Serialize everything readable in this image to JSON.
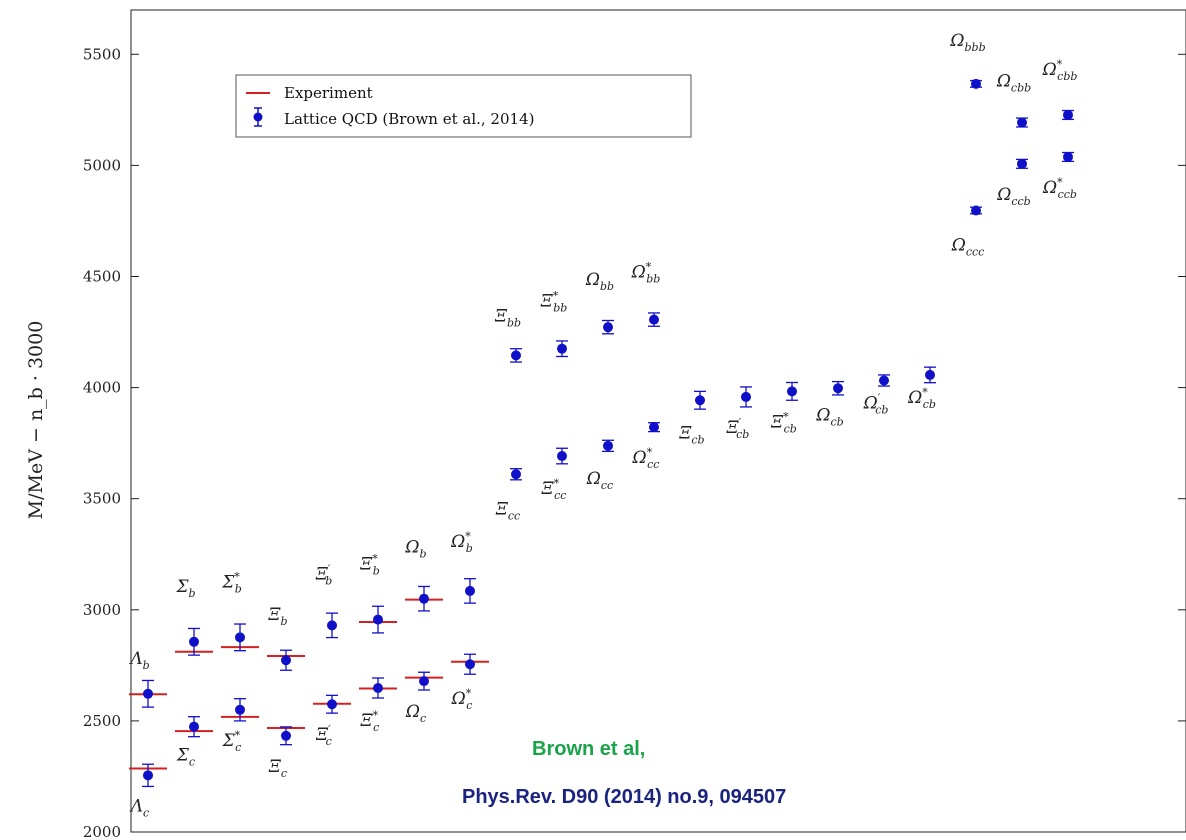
{
  "colors": {
    "experiment": "#d42020",
    "lattice": "#1010c8",
    "credit_author": "#1aa34a",
    "credit_ref": "#1a237e"
  },
  "chart_data": {
    "type": "scatter",
    "ylabel": "M/MeV − n_b · 3000",
    "ylim": [
      2000,
      5700
    ],
    "yticks": [
      2000,
      2500,
      3000,
      3500,
      4000,
      4500,
      5000,
      5500
    ],
    "grid": false,
    "legend": {
      "placement": "top-left",
      "entries": [
        {
          "label": "Experiment",
          "kind": "line"
        },
        {
          "label": "Lattice QCD (Brown et al., 2014)",
          "kind": "errorbar"
        }
      ]
    },
    "points": [
      {
        "label": "Λ",
        "sub": "c",
        "sup": "",
        "x": 1,
        "lattice": 2255,
        "err": 50,
        "exp": 2286
      },
      {
        "label": "Λ",
        "sub": "b",
        "sup": "",
        "x": 1,
        "lattice": 2622,
        "err": 60,
        "exp": 2620
      },
      {
        "label": "Σ",
        "sub": "c",
        "sup": "",
        "x": 2,
        "lattice": 2474,
        "err": 45,
        "exp": 2454
      },
      {
        "label": "Σ",
        "sub": "b",
        "sup": "",
        "x": 2,
        "lattice": 2856,
        "err": 60,
        "exp": 2811
      },
      {
        "label": "Σ",
        "sub": "c",
        "sup": "*",
        "x": 3,
        "lattice": 2550,
        "err": 50,
        "exp": 2518
      },
      {
        "label": "Σ",
        "sub": "b",
        "sup": "*",
        "x": 3,
        "lattice": 2876,
        "err": 60,
        "exp": 2832
      },
      {
        "label": "Ξ",
        "sub": "c",
        "sup": "",
        "x": 4,
        "lattice": 2433,
        "err": 40,
        "exp": 2468
      },
      {
        "label": "Ξ",
        "sub": "b",
        "sup": "",
        "x": 4,
        "lattice": 2773,
        "err": 45,
        "exp": 2792
      },
      {
        "label": "Ξ",
        "sub": "c",
        "sup": "′",
        "x": 5,
        "lattice": 2575,
        "err": 40,
        "exp": 2577
      },
      {
        "label": "Ξ",
        "sub": "b",
        "sup": "′",
        "x": 5,
        "lattice": 2930,
        "err": 55,
        "exp": null
      },
      {
        "label": "Ξ",
        "sub": "c",
        "sup": "*",
        "x": 6,
        "lattice": 2648,
        "err": 45,
        "exp": 2646
      },
      {
        "label": "Ξ",
        "sub": "b",
        "sup": "*",
        "x": 6,
        "lattice": 2956,
        "err": 60,
        "exp": 2945
      },
      {
        "label": "Ω",
        "sub": "c",
        "sup": "",
        "x": 7,
        "lattice": 2679,
        "err": 40,
        "exp": 2695
      },
      {
        "label": "Ω",
        "sub": "b",
        "sup": "",
        "x": 7,
        "lattice": 3050,
        "err": 55,
        "exp": 3046
      },
      {
        "label": "Ω",
        "sub": "c",
        "sup": "*",
        "x": 8,
        "lattice": 2755,
        "err": 45,
        "exp": 2766
      },
      {
        "label": "Ω",
        "sub": "b",
        "sup": "*",
        "x": 8,
        "lattice": 3085,
        "err": 55,
        "exp": null
      },
      {
        "label": "Ξ",
        "sub": "cc",
        "sup": "",
        "x": 9,
        "lattice": 3610,
        "err": 25,
        "exp": null
      },
      {
        "label": "Ξ",
        "sub": "bb",
        "sup": "",
        "x": 9,
        "lattice": 4145,
        "err": 30,
        "exp": null
      },
      {
        "label": "Ξ",
        "sub": "cc",
        "sup": "*",
        "x": 10,
        "lattice": 3692,
        "err": 35,
        "exp": null
      },
      {
        "label": "Ξ",
        "sub": "bb",
        "sup": "*",
        "x": 10,
        "lattice": 4175,
        "err": 35,
        "exp": null
      },
      {
        "label": "Ω",
        "sub": "cc",
        "sup": "",
        "x": 11,
        "lattice": 3738,
        "err": 25,
        "exp": null
      },
      {
        "label": "Ω",
        "sub": "bb",
        "sup": "",
        "x": 11,
        "lattice": 4272,
        "err": 30,
        "exp": null
      },
      {
        "label": "Ω",
        "sub": "cc",
        "sup": "*",
        "x": 12,
        "lattice": 3822,
        "err": 20,
        "exp": null
      },
      {
        "label": "Ω",
        "sub": "bb",
        "sup": "*",
        "x": 12,
        "lattice": 4306,
        "err": 30,
        "exp": null
      },
      {
        "label": "Ξ",
        "sub": "cb",
        "sup": "",
        "x": 13,
        "lattice": 3943,
        "err": 40,
        "exp": null
      },
      {
        "label": "Ξ",
        "sub": "cb",
        "sup": "′",
        "x": 14,
        "lattice": 3958,
        "err": 45,
        "exp": null
      },
      {
        "label": "Ξ",
        "sub": "cb",
        "sup": "*",
        "x": 15,
        "lattice": 3983,
        "err": 40,
        "exp": null
      },
      {
        "label": "Ω",
        "sub": "cb",
        "sup": "",
        "x": 16,
        "lattice": 3997,
        "err": 30,
        "exp": null
      },
      {
        "label": "Ω",
        "sub": "cb",
        "sup": "′",
        "x": 17,
        "lattice": 4032,
        "err": 25,
        "exp": null
      },
      {
        "label": "Ω",
        "sub": "cb",
        "sup": "*",
        "x": 18,
        "lattice": 4057,
        "err": 35,
        "exp": null
      },
      {
        "label": "Ω",
        "sub": "ccc",
        "sup": "",
        "x": 19,
        "lattice": 4797,
        "err": 15,
        "exp": null
      },
      {
        "label": "Ω",
        "sub": "bbb",
        "sup": "",
        "x": 19,
        "lattice": 5367,
        "err": 15,
        "exp": null
      },
      {
        "label": "Ω",
        "sub": "ccb",
        "sup": "",
        "x": 20,
        "lattice": 5007,
        "err": 20,
        "exp": null
      },
      {
        "label": "Ω",
        "sub": "cbb",
        "sup": "",
        "x": 20,
        "lattice": 5193,
        "err": 20,
        "exp": null
      },
      {
        "label": "Ω",
        "sub": "ccb",
        "sup": "*",
        "x": 21,
        "lattice": 5038,
        "err": 20,
        "exp": null
      },
      {
        "label": "Ω",
        "sub": "cbb",
        "sup": "*",
        "x": 21,
        "lattice": 5227,
        "err": 20,
        "exp": null
      }
    ]
  },
  "credit": {
    "author": "Brown et al,",
    "reference": "Phys.Rev. D90 (2014) no.9, 094507"
  }
}
